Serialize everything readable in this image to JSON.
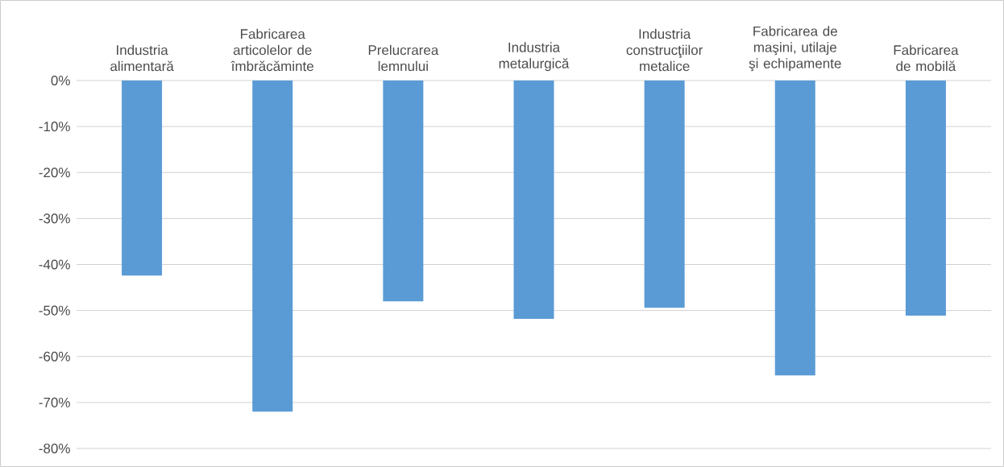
{
  "chart_data": {
    "type": "bar",
    "categories": [
      "Industria alimentară",
      "Fabricarea articolelor de îmbrăcăminte",
      "Prelucrarea lemnului",
      "Industria metalurgică",
      "Industria construcţiilor metalice",
      "Fabricarea de maşini, utilaje şi echipamente",
      "Fabricarea de mobilă"
    ],
    "values": [
      -42.4,
      -72,
      -48,
      -51.8,
      -49.4,
      -64.1,
      -51.1
    ],
    "color": "#5b9bd5",
    "ylim": [
      -80,
      0
    ],
    "yticks": [
      {
        "value": -80,
        "label": "-80%"
      },
      {
        "value": -70,
        "label": "-70%"
      },
      {
        "value": -60,
        "label": "-60%"
      },
      {
        "value": -50,
        "label": "-50%"
      },
      {
        "value": -40,
        "label": "-40%"
      },
      {
        "value": -30,
        "label": "-30%"
      },
      {
        "value": -20,
        "label": "-20%"
      },
      {
        "value": -10,
        "label": "-10%"
      },
      {
        "value": 0,
        "label": "0%"
      }
    ],
    "grid": "y"
  }
}
